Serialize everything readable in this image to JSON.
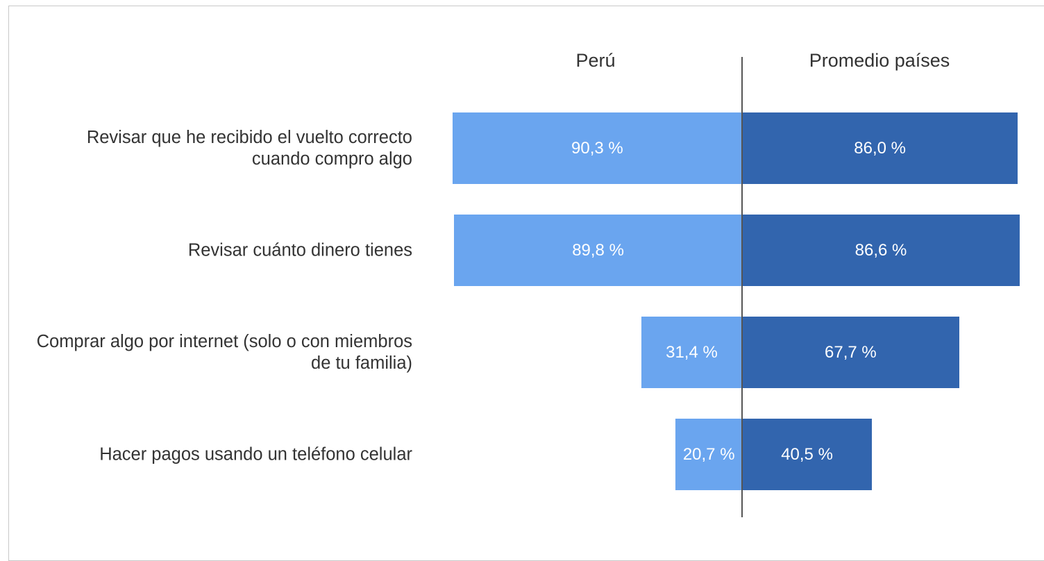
{
  "chart_data": {
    "type": "butterfly",
    "categories": [
      "Revisar que he recibido el vuelto correcto cuando compro algo",
      "Revisar cuánto dinero tienes",
      "Comprar algo por internet (solo o con miembros de tu familia)",
      "Hacer pagos usando un teléfono celular"
    ],
    "series": [
      {
        "name": "Perú",
        "color": "#6aa5ef",
        "values": [
          90.3,
          89.8,
          31.4,
          20.7
        ],
        "value_labels": [
          "90,3 %",
          "89,8 %",
          "31,4 %",
          "20,7 %"
        ]
      },
      {
        "name": "Promedio países",
        "color": "#3265ae",
        "values": [
          86.0,
          86.6,
          67.7,
          40.5
        ],
        "value_labels": [
          "86,0 %",
          "86,6 %",
          "67,7 %",
          "40,5 %"
        ]
      }
    ]
  }
}
